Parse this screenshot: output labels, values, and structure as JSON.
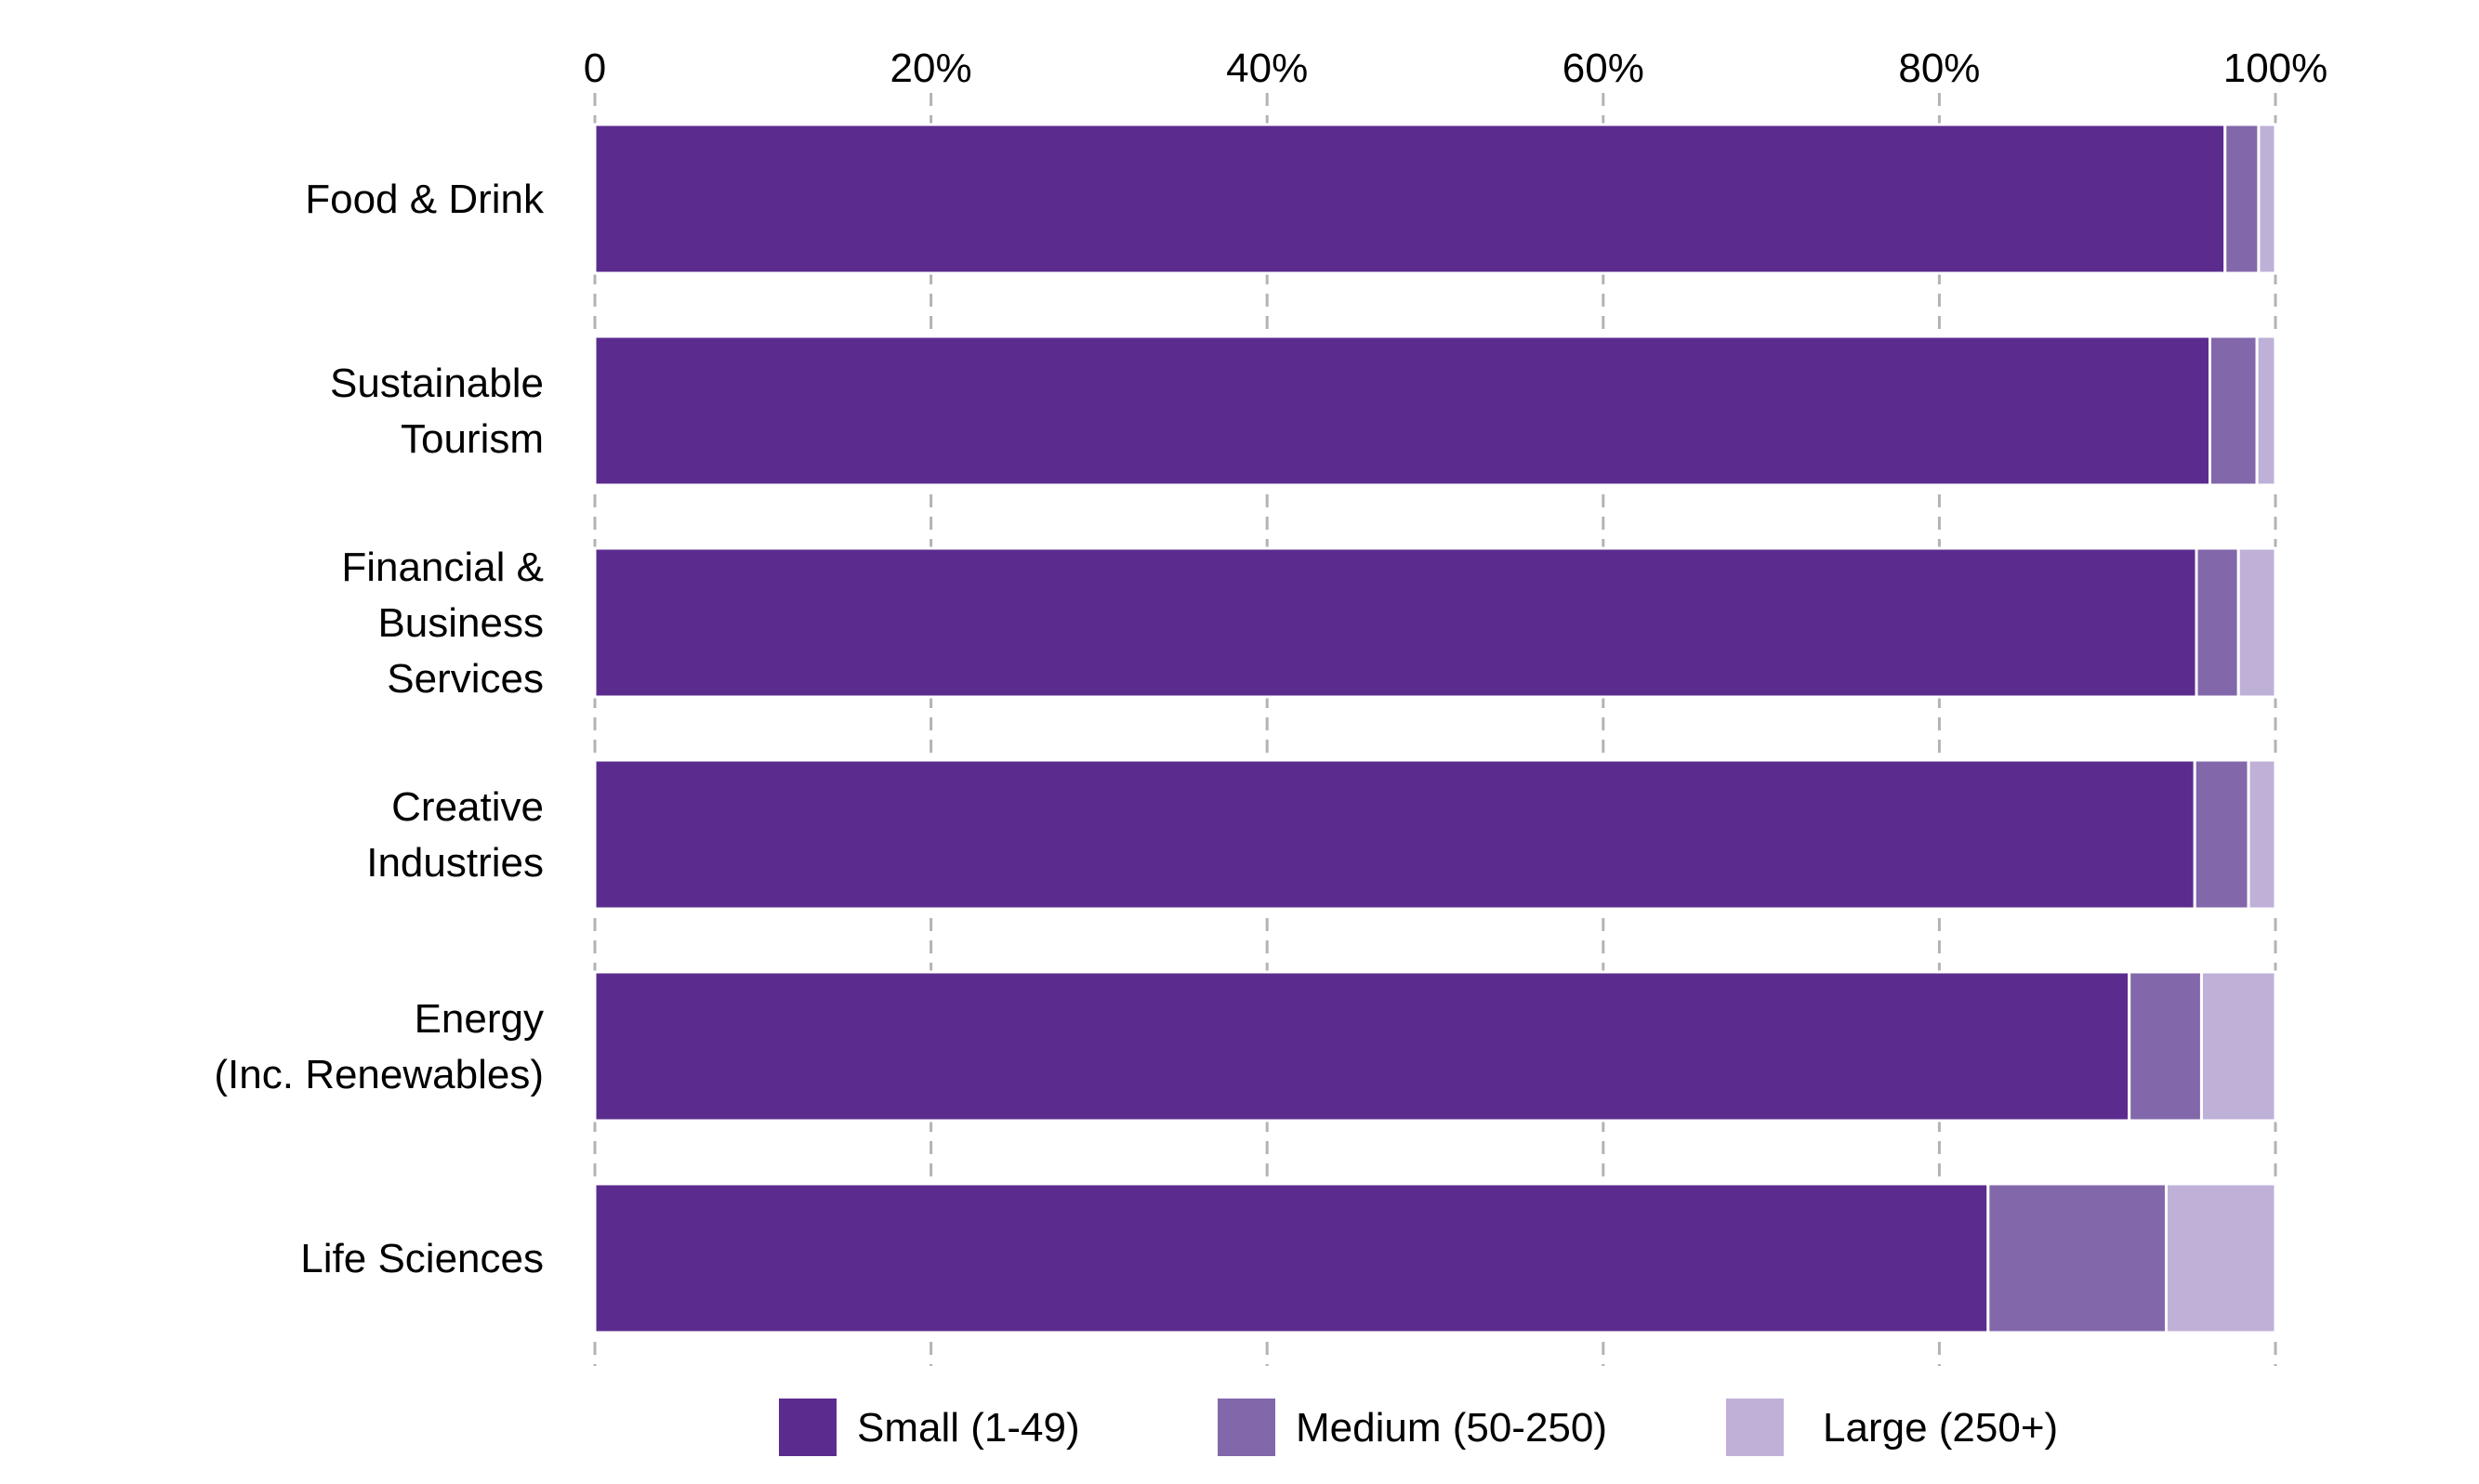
{
  "chart_data": {
    "type": "bar",
    "orientation": "horizontal",
    "stacked": true,
    "title": "",
    "xlabel": "",
    "ylabel": "",
    "xlim": [
      0,
      100
    ],
    "x_ticks": [
      "0",
      "20%",
      "40%",
      "60%",
      "80%",
      "100%"
    ],
    "x_axis_position": "top",
    "grid": true,
    "legend_position": "bottom",
    "categories": [
      [
        "Food & Drink"
      ],
      [
        "Sustainable",
        "Tourism"
      ],
      [
        "Financial &",
        "Business",
        "Services"
      ],
      [
        "Creative",
        "Industries"
      ],
      [
        "Energy",
        "(Inc. Renewables)"
      ],
      [
        "Life Sciences"
      ]
    ],
    "series": [
      {
        "name": "Small (1-49)",
        "color": "#5b2c8e",
        "values": [
          97.0,
          96.1,
          95.3,
          95.2,
          91.3,
          82.9
        ]
      },
      {
        "name": "Medium (50-250)",
        "color": "#8267ab",
        "values": [
          2.0,
          2.8,
          2.5,
          3.2,
          4.3,
          10.6
        ]
      },
      {
        "name": "Large (250+)",
        "color": "#bfb0d8",
        "values": [
          1.0,
          1.1,
          2.2,
          1.6,
          4.4,
          6.5
        ]
      }
    ]
  }
}
